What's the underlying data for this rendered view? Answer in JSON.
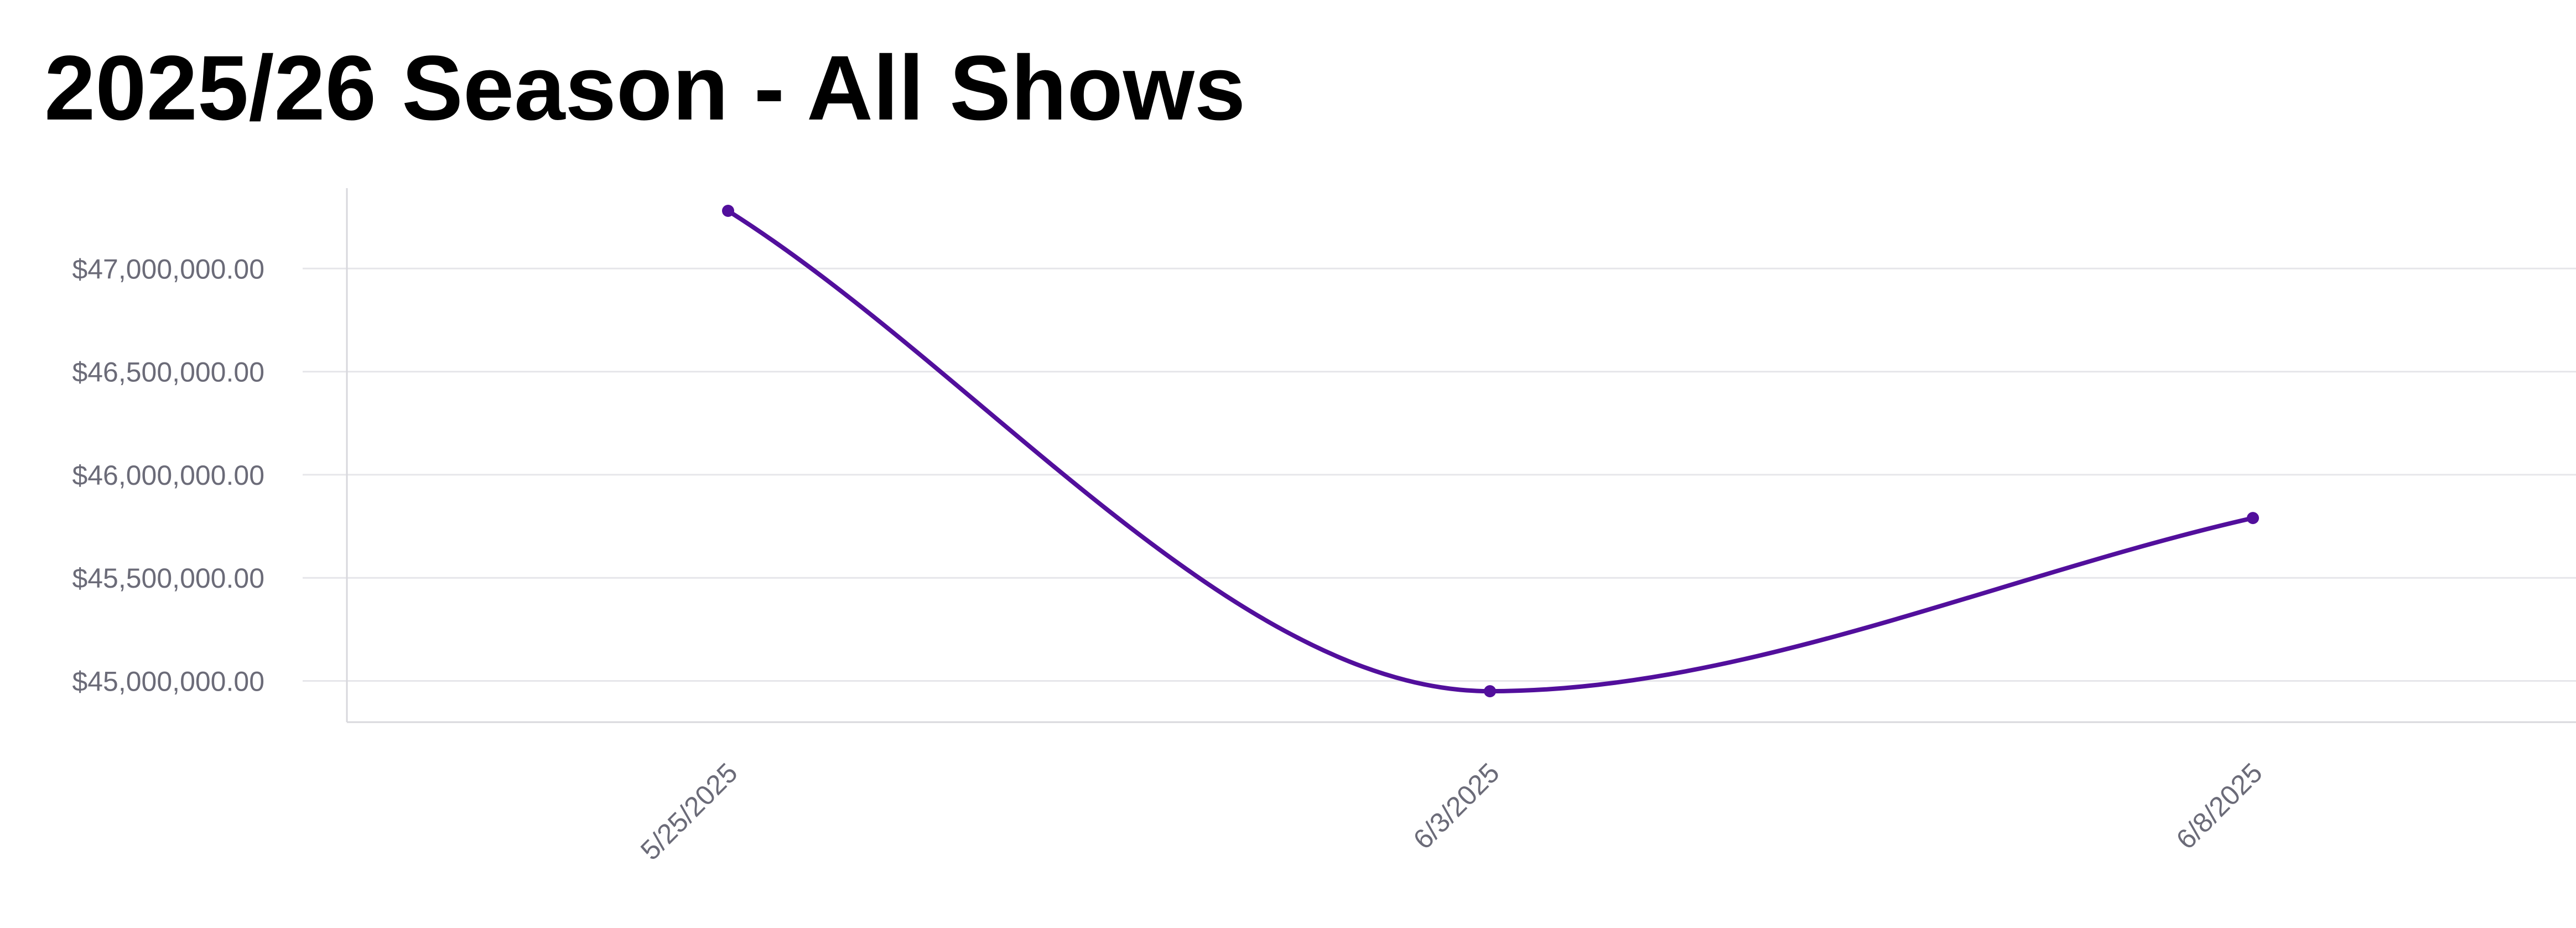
{
  "chart_data": {
    "type": "line",
    "title": "2025/26 Season - All Shows",
    "xlabel": "",
    "ylabel": "",
    "categories": [
      "5/25/2025",
      "6/3/2025",
      "6/8/2025"
    ],
    "series": [
      {
        "values": [
          47280000,
          44950000,
          45790000
        ]
      }
    ],
    "y_ticks": [
      45000000,
      45500000,
      46000000,
      46500000,
      47000000
    ],
    "y_tick_labels": [
      "$45,000,000.00",
      "$45,500,000.00",
      "$46,000,000.00",
      "$46,500,000.00",
      "$47,000,000.00"
    ],
    "ylim": [
      44800000,
      47390000
    ],
    "grid": true,
    "legend": "none",
    "line_color": "#520f9c",
    "grid_color": "#e6e6ea",
    "axis_color": "#d8d8dd",
    "tick_label_color": "#6b6b78",
    "smooth": true
  }
}
